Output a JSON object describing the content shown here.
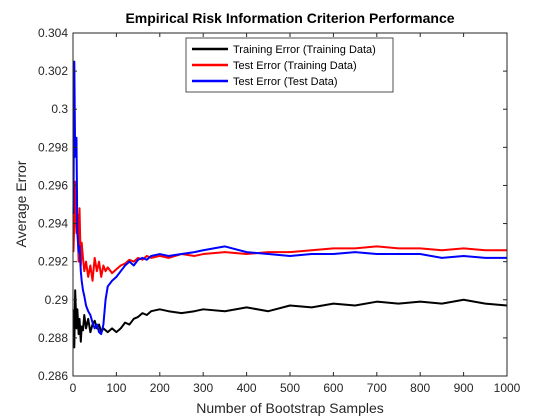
{
  "chart_data": {
    "type": "line",
    "title": "Empirical Risk Information Criterion Performance",
    "xlabel": "Number of Bootstrap Samples",
    "ylabel": "Average Error",
    "xlim": [
      0,
      1000
    ],
    "ylim": [
      0.286,
      0.304
    ],
    "xticks": [
      0,
      100,
      200,
      300,
      400,
      500,
      600,
      700,
      800,
      900,
      1000
    ],
    "xtick_labels": [
      "0",
      "100",
      "200",
      "300",
      "400",
      "500",
      "600",
      "700",
      "800",
      "900",
      "1000"
    ],
    "yticks": [
      0.286,
      0.288,
      0.29,
      0.292,
      0.294,
      0.296,
      0.298,
      0.3,
      0.302,
      0.304
    ],
    "ytick_labels": [
      "0.286",
      "0.288",
      "0.29",
      "0.292",
      "0.294",
      "0.296",
      "0.298",
      "0.3",
      "0.302",
      "0.304"
    ],
    "grid": false,
    "legend_position": "top-center",
    "series": [
      {
        "name": "Training Error (Training Data)",
        "color": "#000000",
        "x": [
          1,
          3,
          5,
          8,
          10,
          13,
          15,
          18,
          20,
          23,
          26,
          30,
          35,
          40,
          45,
          50,
          55,
          60,
          65,
          70,
          75,
          80,
          90,
          100,
          110,
          120,
          130,
          140,
          150,
          160,
          170,
          180,
          200,
          220,
          250,
          280,
          300,
          350,
          400,
          450,
          500,
          550,
          600,
          650,
          700,
          750,
          800,
          850,
          900,
          950,
          1000
        ],
        "y": [
          0.2895,
          0.2875,
          0.2905,
          0.2885,
          0.2895,
          0.2882,
          0.289,
          0.2878,
          0.2886,
          0.2884,
          0.2892,
          0.2885,
          0.289,
          0.2883,
          0.2887,
          0.2889,
          0.2885,
          0.2887,
          0.2883,
          0.2885,
          0.2884,
          0.2883,
          0.2885,
          0.2883,
          0.2885,
          0.2888,
          0.2887,
          0.289,
          0.2891,
          0.2893,
          0.2892,
          0.2894,
          0.2895,
          0.2894,
          0.2893,
          0.2894,
          0.2895,
          0.2894,
          0.2896,
          0.2894,
          0.2897,
          0.2896,
          0.2898,
          0.2897,
          0.2899,
          0.2898,
          0.2899,
          0.2898,
          0.29,
          0.2898,
          0.2897
        ]
      },
      {
        "name": "Test Error (Training Data)",
        "color": "#ff0000",
        "x": [
          1,
          3,
          5,
          8,
          10,
          13,
          15,
          18,
          20,
          23,
          26,
          30,
          35,
          40,
          45,
          50,
          55,
          60,
          65,
          70,
          75,
          80,
          90,
          100,
          110,
          120,
          130,
          140,
          150,
          160,
          170,
          180,
          200,
          220,
          250,
          280,
          300,
          350,
          400,
          450,
          500,
          550,
          600,
          650,
          700,
          750,
          800,
          850,
          900,
          950,
          1000
        ],
        "y": [
          0.2925,
          0.294,
          0.2962,
          0.2935,
          0.2945,
          0.292,
          0.2948,
          0.2918,
          0.293,
          0.2922,
          0.2915,
          0.292,
          0.2912,
          0.2918,
          0.291,
          0.2922,
          0.2915,
          0.292,
          0.2912,
          0.2918,
          0.2915,
          0.2917,
          0.2914,
          0.2916,
          0.2918,
          0.2919,
          0.2921,
          0.292,
          0.2922,
          0.2921,
          0.2923,
          0.2922,
          0.2923,
          0.2922,
          0.2924,
          0.2923,
          0.2924,
          0.2925,
          0.2924,
          0.2925,
          0.2925,
          0.2926,
          0.2927,
          0.2927,
          0.2928,
          0.2927,
          0.2927,
          0.2926,
          0.2927,
          0.2926,
          0.2926
        ]
      },
      {
        "name": "Test Error (Test Data)",
        "color": "#0000ff",
        "x": [
          1,
          3,
          5,
          8,
          10,
          13,
          15,
          18,
          20,
          23,
          26,
          30,
          35,
          40,
          45,
          50,
          55,
          60,
          65,
          70,
          75,
          80,
          90,
          100,
          110,
          120,
          130,
          140,
          150,
          160,
          170,
          180,
          200,
          220,
          250,
          280,
          300,
          350,
          400,
          450,
          500,
          550,
          600,
          650,
          700,
          750,
          800,
          850,
          900,
          950,
          1000
        ],
        "y": [
          0.2945,
          0.3025,
          0.2975,
          0.2985,
          0.2935,
          0.2925,
          0.2928,
          0.2915,
          0.291,
          0.2905,
          0.2902,
          0.2897,
          0.2894,
          0.2892,
          0.2888,
          0.2885,
          0.2887,
          0.2883,
          0.2882,
          0.2887,
          0.29,
          0.2907,
          0.291,
          0.2912,
          0.2915,
          0.2918,
          0.292,
          0.2918,
          0.2921,
          0.2922,
          0.2921,
          0.2923,
          0.2924,
          0.2923,
          0.2924,
          0.2925,
          0.2926,
          0.2928,
          0.2925,
          0.2924,
          0.2923,
          0.2924,
          0.2924,
          0.2925,
          0.2924,
          0.2924,
          0.2924,
          0.2922,
          0.2923,
          0.2922,
          0.2922
        ]
      }
    ]
  }
}
